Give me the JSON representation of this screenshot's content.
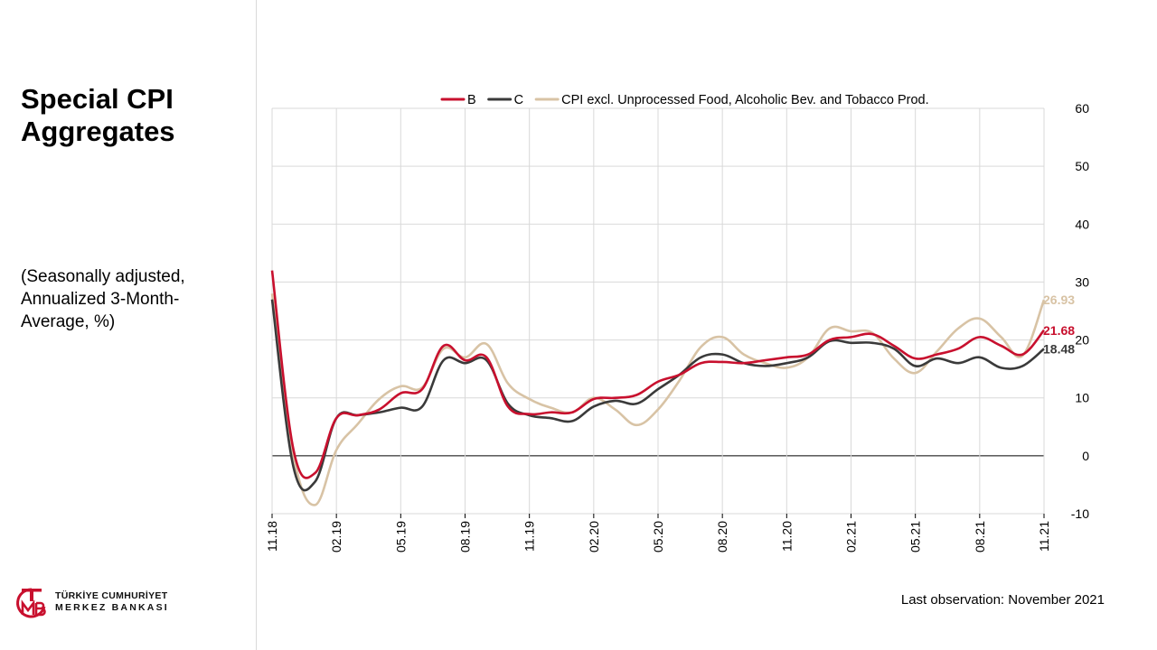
{
  "slide": {
    "title": "Special CPI Aggregates",
    "subtitle": "(Seasonally adjusted, Annualized 3-Month-Average, %)",
    "footnote": "Last observation: November 2021"
  },
  "logo": {
    "line1": "TÜRKİYE CUMHURİYET",
    "line2": "MERKEZ BANKASI",
    "color": "#c8102e"
  },
  "chart_data": {
    "type": "line",
    "title": "",
    "xlabel": "",
    "ylabel": "",
    "ylim": [
      -10,
      60
    ],
    "yticks": [
      -10,
      0,
      10,
      20,
      30,
      40,
      50,
      60
    ],
    "grid": true,
    "legend_position": "top",
    "y_axis_side": "right",
    "x": [
      "11.18",
      "12.18",
      "01.19",
      "02.19",
      "03.19",
      "04.19",
      "05.19",
      "06.19",
      "07.19",
      "08.19",
      "09.19",
      "10.19",
      "11.19",
      "12.19",
      "01.20",
      "02.20",
      "03.20",
      "04.20",
      "05.20",
      "06.20",
      "07.20",
      "08.20",
      "09.20",
      "10.20",
      "11.20",
      "12.20",
      "01.21",
      "02.21",
      "03.21",
      "04.21",
      "05.21",
      "06.21",
      "07.21",
      "08.21",
      "09.21",
      "10.21",
      "11.21"
    ],
    "x_tick_labels": [
      "11.18",
      "02.19",
      "05.19",
      "08.19",
      "11.19",
      "02.20",
      "05.20",
      "08.20",
      "11.20",
      "02.21",
      "05.21",
      "08.21",
      "11.21"
    ],
    "series": [
      {
        "name": "B",
        "color": "#c8102e",
        "values": [
          32.0,
          1.0,
          -3.0,
          6.5,
          7.0,
          8.0,
          10.8,
          11.5,
          19.0,
          16.5,
          17.0,
          8.5,
          7.2,
          7.5,
          7.5,
          9.8,
          10.0,
          10.5,
          12.8,
          14.0,
          16.0,
          16.2,
          16.0,
          16.5,
          17.0,
          17.5,
          20.0,
          20.5,
          21.0,
          19.0,
          16.8,
          17.5,
          18.5,
          20.5,
          19.0,
          17.5,
          21.68
        ],
        "end_label": "21.68"
      },
      {
        "name": "C",
        "color": "#3a3a3a",
        "values": [
          27.0,
          -2.0,
          -4.5,
          6.5,
          7.0,
          7.5,
          8.3,
          8.5,
          16.5,
          16.0,
          16.5,
          9.0,
          7.0,
          6.5,
          6.0,
          8.5,
          9.5,
          9.0,
          11.5,
          14.0,
          17.0,
          17.5,
          16.0,
          15.5,
          16.0,
          17.0,
          19.8,
          19.5,
          19.5,
          18.5,
          15.5,
          16.8,
          16.0,
          17.0,
          15.2,
          15.5,
          18.48
        ],
        "end_label": "18.48"
      },
      {
        "name": "CPI excl. Unprocessed Food, Alcoholic Bev. and Tobacco Prod.",
        "color": "#d8c3a5",
        "values": [
          28.0,
          0.0,
          -8.5,
          1.0,
          5.5,
          9.8,
          12.0,
          11.8,
          18.5,
          17.0,
          19.3,
          12.5,
          9.8,
          8.3,
          7.5,
          10.0,
          8.0,
          5.3,
          8.0,
          13.0,
          18.8,
          20.5,
          17.5,
          16.0,
          15.2,
          17.0,
          22.0,
          21.5,
          21.2,
          16.8,
          14.3,
          18.0,
          22.0,
          23.7,
          20.5,
          17.3,
          26.93
        ],
        "end_label": "26.93"
      }
    ]
  }
}
